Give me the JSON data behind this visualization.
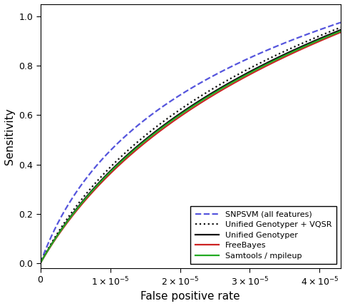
{
  "xlabel": "False positive rate",
  "ylabel": "Sensitivity",
  "xlim": [
    0,
    4.3e-05
  ],
  "ylim": [
    -0.02,
    1.05
  ],
  "xticks": [
    0,
    1e-05,
    2e-05,
    3e-05,
    4e-05
  ],
  "yticks": [
    0.0,
    0.2,
    0.4,
    0.6,
    0.8,
    1.0
  ],
  "legend": {
    "labels": [
      "SNPSVM (all features)",
      "Unified Genotyper + VQSR",
      "Unified Genotyper",
      "FreeBayes",
      "Samtools / mpileup"
    ],
    "colors": [
      "#5555dd",
      "#111111",
      "#111111",
      "#cc2222",
      "#22aa22"
    ],
    "linestyles": [
      "--",
      ":",
      "-",
      "-",
      "-"
    ]
  },
  "background_color": "#ffffff",
  "figsize": [
    4.84,
    4.29
  ],
  "dpi": 100,
  "snpsvm": {
    "scale": 6e-06,
    "ymax": 0.975
  },
  "vqsr": {
    "scale": 1.1e-05,
    "ymax": 0.955
  },
  "ug": {
    "scale": 1.25e-05,
    "ymax": 0.945
  },
  "fb": {
    "scale": 1.35e-05,
    "ymax": 0.935
  },
  "sm": {
    "scale": 1.28e-05,
    "ymax": 0.94
  }
}
